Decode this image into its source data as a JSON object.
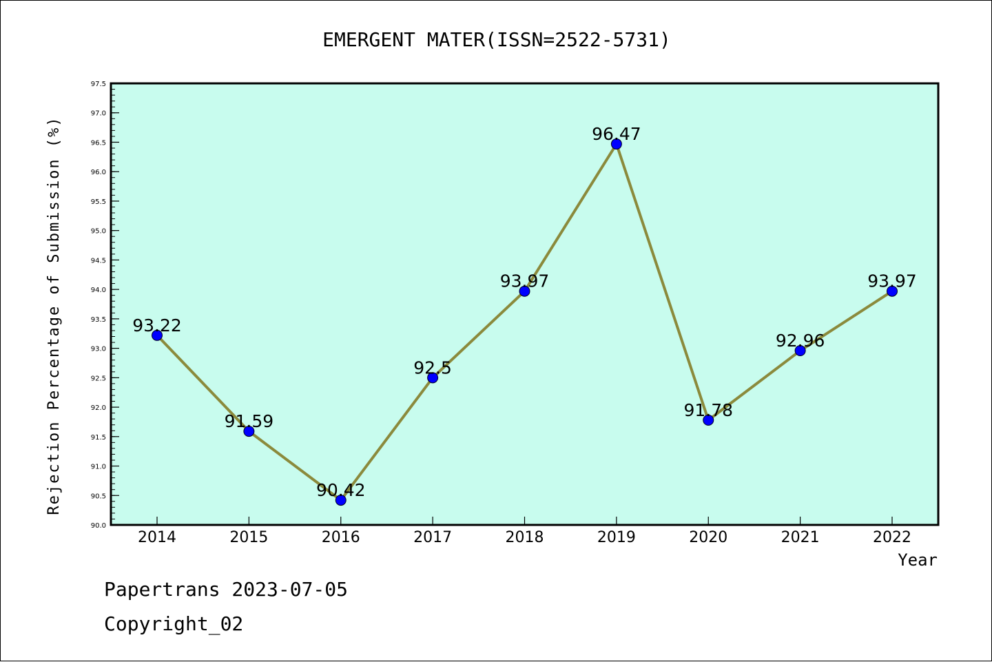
{
  "chart_data": {
    "type": "line",
    "title": "EMERGENT MATER(ISSN=2522-5731)",
    "xlabel": "Year",
    "ylabel": "Rejection Percentage of Submission (%)",
    "categories": [
      "2014",
      "2015",
      "2016",
      "2017",
      "2018",
      "2019",
      "2020",
      "2021",
      "2022"
    ],
    "series": [
      {
        "values": [
          93.22,
          91.59,
          90.42,
          92.5,
          93.97,
          96.47,
          91.78,
          92.96,
          93.97
        ],
        "labels": [
          "93.22",
          "91.59",
          "90.42",
          "92.5",
          "93.97",
          "96.47",
          "91.78",
          "92.96",
          "93.97"
        ],
        "line_color": "#8b8a3c",
        "marker_color": "#0000ff"
      }
    ],
    "ylim": [
      90.0,
      97.5
    ],
    "yticks": [
      "90.0",
      "90.5",
      "91.0",
      "91.5",
      "92.0",
      "92.5",
      "93.0",
      "93.5",
      "94.0",
      "94.5",
      "95.0",
      "95.5",
      "96.0",
      "96.5",
      "97.0",
      "97.5"
    ],
    "plot_background": "#c8fcee",
    "grid": false,
    "legend": "none"
  },
  "footer": {
    "line1": "Papertrans 2023-07-05",
    "line2": "Copyright_02"
  }
}
